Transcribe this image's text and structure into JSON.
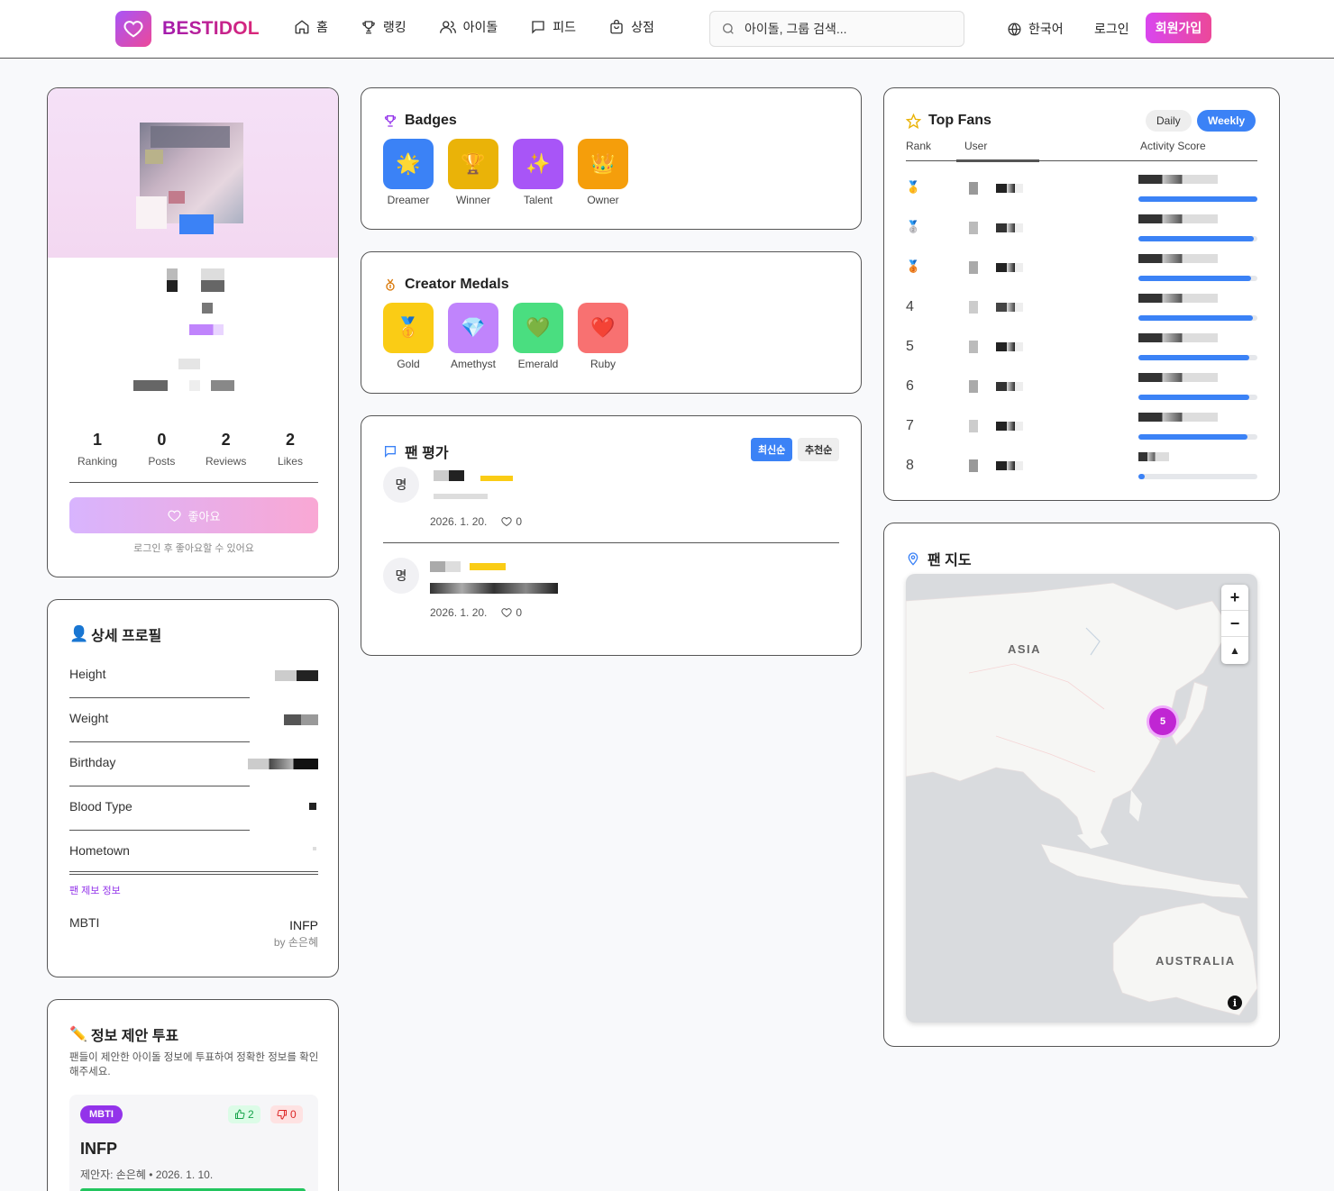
{
  "header": {
    "brand": "BESTIDOL",
    "nav": [
      {
        "label": "홈",
        "icon": "home-icon"
      },
      {
        "label": "랭킹",
        "icon": "trophy-icon"
      },
      {
        "label": "아이돌",
        "icon": "users-icon"
      },
      {
        "label": "피드",
        "icon": "message-icon"
      },
      {
        "label": "상점",
        "icon": "shopping-bag-icon"
      }
    ],
    "search_placeholder": "아이돌, 그룹 검색...",
    "language": "한국어",
    "login": "로그인",
    "signup": "회원가입"
  },
  "profile": {
    "stats": [
      {
        "value": "1",
        "label": "Ranking"
      },
      {
        "value": "0",
        "label": "Posts"
      },
      {
        "value": "2",
        "label": "Reviews"
      },
      {
        "value": "2",
        "label": "Likes"
      }
    ],
    "like_button": "좋아요",
    "like_note": "로그인 후 좋아요할 수 있어요"
  },
  "detail": {
    "title": "상세 프로필",
    "fields": [
      "Height",
      "Weight",
      "Birthday",
      "Blood Type",
      "Hometown"
    ],
    "fan_info_label": "팬 제보 정보",
    "mbti_label": "MBTI",
    "mbti_value": "INFP",
    "mbti_by": "by 손은혜"
  },
  "vote": {
    "title": "정보 제안 투표",
    "description": "팬들이 제안한 아이돌 정보에 투표하여 정확한 정보를 확인해주세요.",
    "item": {
      "tag": "MBTI",
      "up": "2",
      "down": "0",
      "value": "INFP",
      "meta": "제안자: 손은혜 • 2026. 1. 10.",
      "approval": 1.0
    }
  },
  "badges": {
    "title": "Badges",
    "items": [
      {
        "label": "Dreamer",
        "emoji": "🌟",
        "color": "#3b82f6"
      },
      {
        "label": "Winner",
        "emoji": "🏆",
        "color": "#eab308"
      },
      {
        "label": "Talent",
        "emoji": "✨",
        "color": "#a855f7"
      },
      {
        "label": "Owner",
        "emoji": "👑",
        "color": "#f59e0b"
      }
    ]
  },
  "medals": {
    "title": "Creator Medals",
    "items": [
      {
        "label": "Gold",
        "emoji": "🥇",
        "color": "#facc15"
      },
      {
        "label": "Amethyst",
        "emoji": "💎",
        "color": "#c084fc"
      },
      {
        "label": "Emerald",
        "emoji": "💚",
        "color": "#4ade80"
      },
      {
        "label": "Ruby",
        "emoji": "❤️",
        "color": "#f87171"
      }
    ]
  },
  "reviews": {
    "title": "팬 평가",
    "sort_latest": "최신순",
    "sort_recommended": "추천순",
    "items": [
      {
        "avatar": "명",
        "date": "2026. 1. 20.",
        "likes": "0"
      },
      {
        "avatar": "명",
        "date": "2026. 1. 20.",
        "likes": "0"
      }
    ]
  },
  "top_fans": {
    "title": "Top Fans",
    "tab_daily": "Daily",
    "tab_weekly": "Weekly",
    "col_rank": "Rank",
    "col_user": "User",
    "col_score": "Activity Score",
    "rows": [
      {
        "rank": "🥇",
        "score": 1.0
      },
      {
        "rank": "🥈",
        "score": 0.97
      },
      {
        "rank": "🥉",
        "score": 0.95
      },
      {
        "rank": "4",
        "score": 0.96
      },
      {
        "rank": "5",
        "score": 0.93
      },
      {
        "rank": "6",
        "score": 0.93
      },
      {
        "rank": "7",
        "score": 0.92
      },
      {
        "rank": "8",
        "score": 0.05
      }
    ]
  },
  "fan_map": {
    "title": "팬 지도",
    "label_asia": "ASIA",
    "label_australia": "AUSTRALIA",
    "cluster_count": "5"
  }
}
